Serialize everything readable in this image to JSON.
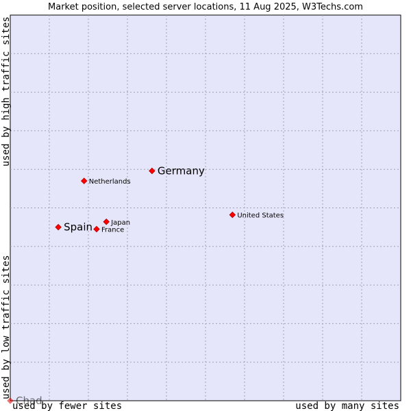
{
  "chart_data": {
    "type": "scatter",
    "title": "Market position, selected server locations, 11 Aug 2025, W3Techs.com",
    "xlabel_low": "used by fewer sites",
    "xlabel_high": "used by many sites",
    "ylabel_low": "used by low traffic sites",
    "ylabel_high": "used by high traffic sites",
    "xlim": [
      0,
      10
    ],
    "ylim": [
      0,
      10
    ],
    "grid": true,
    "colors": {
      "plot_bg": "#e6e6fa",
      "grid": "#a0a0b4",
      "marker": "#ff0000",
      "marker_edge": "#b00000"
    },
    "points": [
      {
        "label": "Germany",
        "x": 3.63,
        "y": 5.96,
        "size": "large"
      },
      {
        "label": "Netherlands",
        "x": 1.89,
        "y": 5.7,
        "size": "small"
      },
      {
        "label": "United States",
        "x": 5.69,
        "y": 4.82,
        "size": "small"
      },
      {
        "label": "Japan",
        "x": 2.46,
        "y": 4.64,
        "size": "small"
      },
      {
        "label": "Spain",
        "x": 1.23,
        "y": 4.5,
        "size": "large"
      },
      {
        "label": "France",
        "x": 2.21,
        "y": 4.45,
        "size": "small"
      },
      {
        "label": "Chad",
        "x": 0.0,
        "y": 0.0,
        "size": "large",
        "faded": true
      }
    ]
  }
}
